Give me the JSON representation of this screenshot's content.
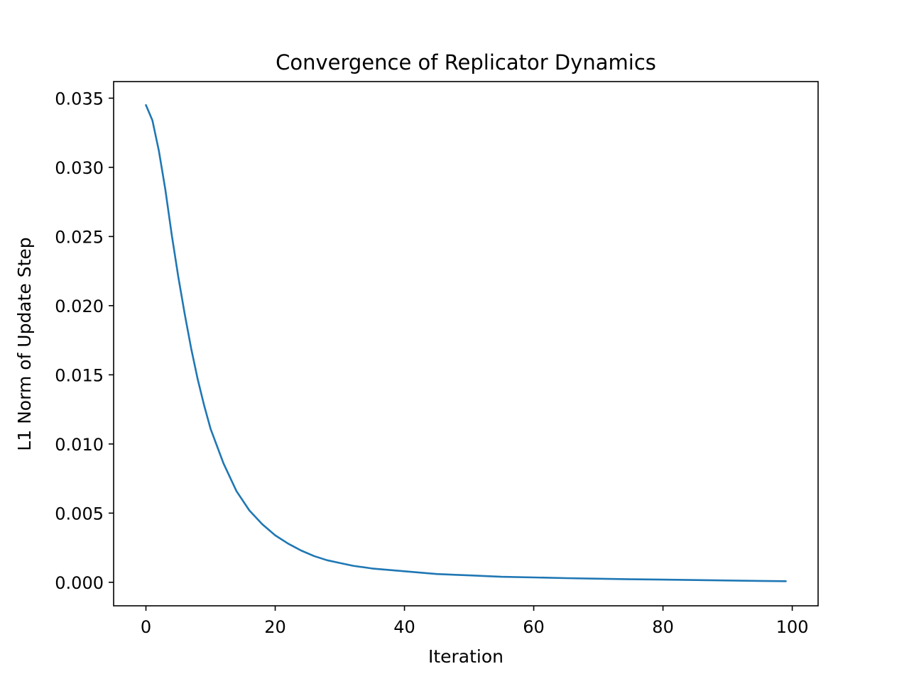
{
  "chart_data": {
    "type": "line",
    "title": "Convergence of Replicator Dynamics",
    "xlabel": "Iteration",
    "ylabel": "L1 Norm of Update Step",
    "xlim": [
      -5,
      104
    ],
    "ylim": [
      -0.0017,
      0.0362
    ],
    "x_ticks": [
      0,
      20,
      40,
      60,
      80,
      100
    ],
    "x_tick_labels": [
      "0",
      "20",
      "40",
      "60",
      "80",
      "100"
    ],
    "y_ticks": [
      0.0,
      0.005,
      0.01,
      0.015,
      0.02,
      0.025,
      0.03,
      0.035
    ],
    "y_tick_labels": [
      "0.000",
      "0.005",
      "0.010",
      "0.015",
      "0.020",
      "0.025",
      "0.030",
      "0.035"
    ],
    "grid": false,
    "series": [
      {
        "color": "#1f77b4",
        "x": [
          0,
          1,
          2,
          3,
          4,
          5,
          6,
          7,
          8,
          9,
          10,
          12,
          14,
          16,
          18,
          20,
          22,
          24,
          26,
          28,
          30,
          32,
          35,
          40,
          45,
          50,
          55,
          60,
          65,
          70,
          75,
          80,
          85,
          90,
          95,
          99
        ],
        "y": [
          0.0345,
          0.0334,
          0.0312,
          0.0284,
          0.0251,
          0.0221,
          0.0194,
          0.0169,
          0.0147,
          0.0128,
          0.0111,
          0.0086,
          0.0066,
          0.0052,
          0.0042,
          0.0034,
          0.0028,
          0.0023,
          0.0019,
          0.0016,
          0.0014,
          0.0012,
          0.001,
          0.0008,
          0.0006,
          0.0005,
          0.0004,
          0.00035,
          0.0003,
          0.00026,
          0.00022,
          0.00019,
          0.00016,
          0.00013,
          0.0001,
          8e-05
        ]
      }
    ]
  }
}
